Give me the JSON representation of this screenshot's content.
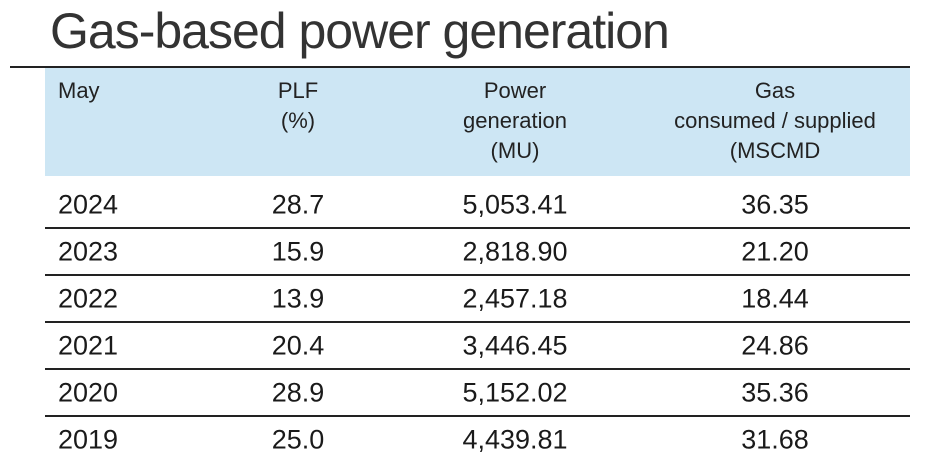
{
  "title": "Gas-based power generation",
  "table": {
    "headers": [
      [
        "May"
      ],
      [
        "PLF",
        "(%)"
      ],
      [
        "Power",
        "generation",
        "(MU)"
      ],
      [
        "Gas",
        "consumed / supplied",
        "(MSCMD"
      ]
    ],
    "rows": [
      [
        "2024",
        "28.7",
        "5,053.41",
        "36.35"
      ],
      [
        "2023",
        "15.9",
        "2,818.90",
        "21.20"
      ],
      [
        "2022",
        "13.9",
        "2,457.18",
        "18.44"
      ],
      [
        "2021",
        "20.4",
        "3,446.45",
        "24.86"
      ],
      [
        "2020",
        "28.9",
        "5,152.02",
        "35.36"
      ],
      [
        "2019",
        "25.0",
        "4,439.81",
        "31.68"
      ]
    ]
  }
}
